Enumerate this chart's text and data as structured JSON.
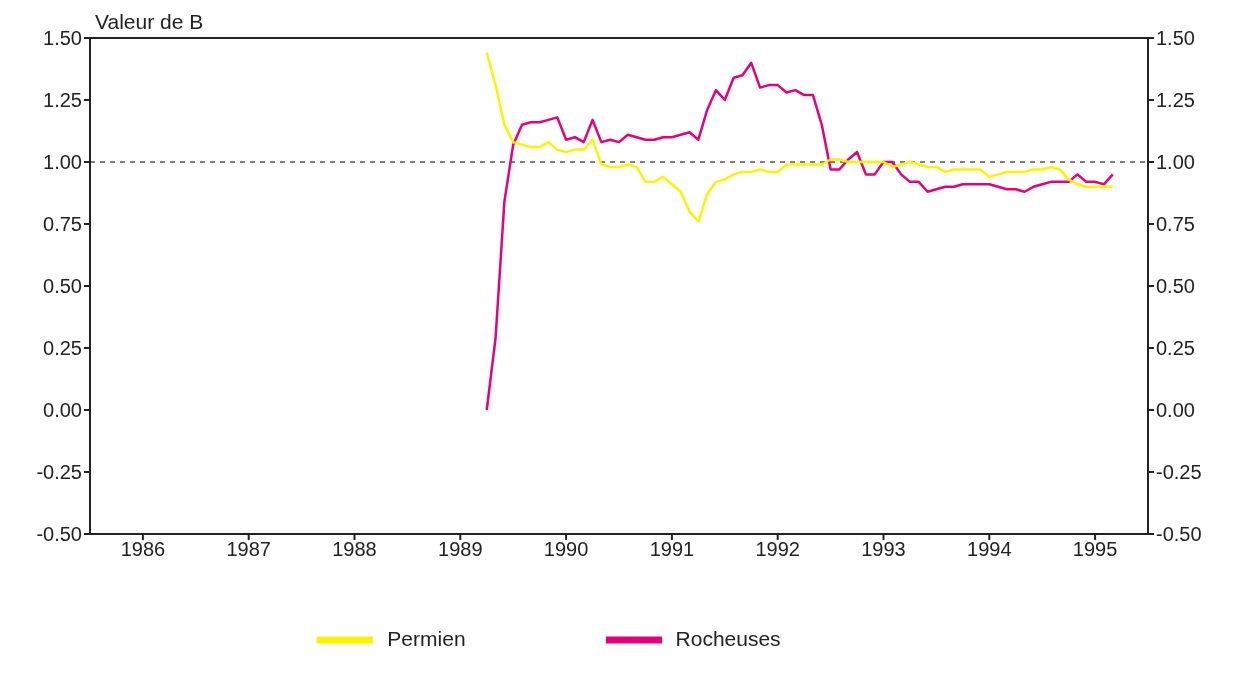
{
  "chart_data": {
    "type": "line",
    "ylabel": "Valeur de B",
    "x": [
      "1989-10",
      "1989-11",
      "1989-12",
      "1990-01",
      "1990-02",
      "1990-03",
      "1990-04",
      "1990-05",
      "1990-06",
      "1990-07",
      "1990-08",
      "1990-09",
      "1990-10",
      "1990-11",
      "1990-12",
      "1991-01",
      "1991-02",
      "1991-03",
      "1991-04",
      "1991-05",
      "1991-06",
      "1991-07",
      "1991-08",
      "1991-09",
      "1991-10",
      "1991-11",
      "1991-12",
      "1992-01",
      "1992-02",
      "1992-03",
      "1992-04",
      "1992-05",
      "1992-06",
      "1992-07",
      "1992-08",
      "1992-09",
      "1992-10",
      "1992-11",
      "1992-12",
      "1993-01",
      "1993-02",
      "1993-03",
      "1993-04",
      "1993-05",
      "1993-06",
      "1993-07",
      "1993-08",
      "1993-09",
      "1993-10",
      "1993-11",
      "1993-12",
      "1994-01",
      "1994-02",
      "1994-03",
      "1994-04",
      "1994-05",
      "1994-06",
      "1994-07",
      "1994-08",
      "1994-09",
      "1994-10",
      "1994-11",
      "1994-12",
      "1995-01",
      "1995-02",
      "1995-03",
      "1995-04",
      "1995-05",
      "1995-06",
      "1995-07",
      "1995-08",
      "1995-09"
    ],
    "series": [
      {
        "name": "Rocheuses",
        "color": "#e6007e",
        "values": [
          0,
          0.29,
          0.84,
          1.07,
          1.15,
          1.16,
          1.16,
          1.17,
          1.18,
          1.09,
          1.1,
          1.08,
          1.17,
          1.08,
          1.09,
          1.08,
          1.11,
          1.1,
          1.09,
          1.09,
          1.1,
          1.1,
          1.11,
          1.12,
          1.09,
          1.21,
          1.29,
          1.25,
          1.34,
          1.35,
          1.4,
          1.3,
          1.31,
          1.31,
          1.28,
          1.29,
          1.27,
          1.27,
          1.15,
          0.97,
          0.97,
          1.01,
          1.04,
          0.95,
          0.95,
          1.0,
          1.0,
          0.95,
          0.92,
          0.92,
          0.88,
          0.89,
          0.9,
          0.9,
          0.91,
          0.91,
          0.91,
          0.91,
          0.9,
          0.89,
          0.89,
          0.88,
          0.9,
          0.91,
          0.92,
          0.92,
          0.92,
          0.95,
          0.92,
          0.92,
          0.91,
          0.95
        ]
      },
      {
        "name": "Permien",
        "color": "#fff200",
        "values": [
          1.44,
          1.31,
          1.15,
          1.08,
          1.07,
          1.06,
          1.06,
          1.08,
          1.05,
          1.04,
          1.05,
          1.05,
          1.09,
          0.99,
          0.98,
          0.98,
          0.99,
          0.98,
          0.92,
          0.92,
          0.94,
          0.91,
          0.88,
          0.8,
          0.76,
          0.87,
          0.92,
          0.93,
          0.95,
          0.96,
          0.96,
          0.97,
          0.96,
          0.96,
          0.99,
          0.99,
          0.99,
          0.99,
          0.99,
          1.01,
          1.01,
          1.0,
          1.0,
          1.0,
          1.0,
          1.0,
          0.98,
          0.99,
          1.0,
          0.99,
          0.98,
          0.98,
          0.96,
          0.97,
          0.97,
          0.97,
          0.97,
          0.94,
          0.95,
          0.96,
          0.96,
          0.96,
          0.97,
          0.97,
          0.98,
          0.97,
          0.93,
          0.91,
          0.9,
          0.9,
          0.9,
          0.9
        ]
      }
    ],
    "xlim": [
      "1986-01",
      "1996-01"
    ],
    "xticks": [
      {
        "value": "1986-07",
        "label": "1986"
      },
      {
        "value": "1987-07",
        "label": "1987"
      },
      {
        "value": "1988-07",
        "label": "1988"
      },
      {
        "value": "1989-07",
        "label": "1989"
      },
      {
        "value": "1990-07",
        "label": "1990"
      },
      {
        "value": "1991-07",
        "label": "1991"
      },
      {
        "value": "1992-07",
        "label": "1992"
      },
      {
        "value": "1993-07",
        "label": "1993"
      },
      {
        "value": "1994-07",
        "label": "1994"
      },
      {
        "value": "1995-07",
        "label": "1995"
      }
    ],
    "ylim": [
      -0.5,
      1.5
    ],
    "yticks": [
      {
        "value": -0.5,
        "label": "-0.50"
      },
      {
        "value": -0.25,
        "label": "-0.25"
      },
      {
        "value": 0,
        "label": "0.00"
      },
      {
        "value": 0.25,
        "label": "0.25"
      },
      {
        "value": 0.5,
        "label": "0.50"
      },
      {
        "value": 0.75,
        "label": "0.75"
      },
      {
        "value": 1,
        "label": "1.00"
      },
      {
        "value": 1.25,
        "label": "1.25"
      },
      {
        "value": 1.5,
        "label": "1.50"
      }
    ],
    "y2lim": [
      -0.5,
      1.5
    ],
    "y2ticks": [
      {
        "value": -0.5,
        "label": "-0.50"
      },
      {
        "value": -0.25,
        "label": "-0.25"
      },
      {
        "value": 0,
        "label": "0.00"
      },
      {
        "value": 0.25,
        "label": "0.25"
      },
      {
        "value": 0.5,
        "label": "0.50"
      },
      {
        "value": 0.75,
        "label": "0.75"
      },
      {
        "value": 1,
        "label": "1.00"
      },
      {
        "value": 1.25,
        "label": "1.25"
      },
      {
        "value": 1.5,
        "label": "1.50"
      }
    ],
    "ref_lines": [
      {
        "axis": "y",
        "value": 1,
        "color": "#000000",
        "line_style": "dashed"
      }
    ],
    "legend": "bottom"
  }
}
